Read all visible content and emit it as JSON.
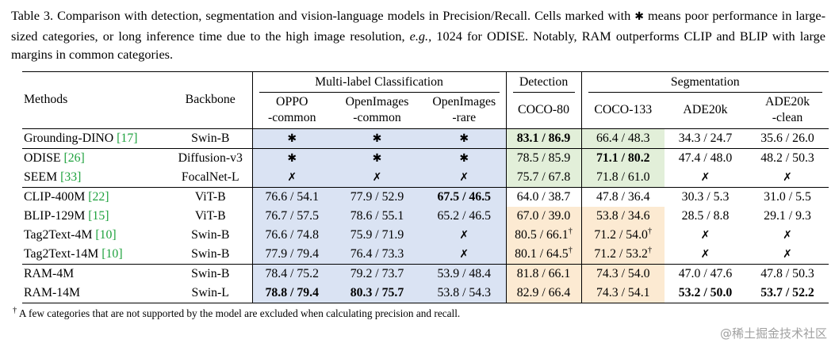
{
  "caption": {
    "segments": [
      {
        "text": "Table 3. Comparison with detection, segmentation and vision-language models in Precision/Recall. Cells marked with "
      },
      {
        "text": "✱",
        "style": "symbol"
      },
      {
        "text": " means poor performance in large-sized categories, or long inference time due to the high image resolution, "
      },
      {
        "text": "e.g.,",
        "style": "italic"
      },
      {
        "text": " 1024 for ODISE. Notably, RAM outperforms CLIP and BLIP with large margins in common categories."
      }
    ]
  },
  "colors": {
    "blue": "#dae3f3",
    "green": "#e2efd9",
    "orange": "#fcead2",
    "cite": "#1fa23e",
    "watermark": "#a0a0a0"
  },
  "symbols": {
    "star": "✱",
    "cross": "✗"
  },
  "table": {
    "corner": {
      "methods": "Methods",
      "backbone": "Backbone"
    },
    "groups": [
      {
        "label": "Multi-label Classification"
      },
      {
        "label": "Detection"
      },
      {
        "label": "Segmentation"
      }
    ],
    "columns": [
      {
        "line1": "OPPO",
        "line2": "-common"
      },
      {
        "line1": "OpenImages",
        "line2": "-common"
      },
      {
        "line1": "OpenImages",
        "line2": "-rare"
      },
      {
        "line1": "COCO-80",
        "line2": ""
      },
      {
        "line1": "COCO-133",
        "line2": ""
      },
      {
        "line1": "ADE20k",
        "line2": ""
      },
      {
        "line1": "ADE20k",
        "line2": "-clean"
      }
    ],
    "rows": [
      {
        "method": "Grounding-DINO",
        "cite": "[17]",
        "backbone": "Swin-B",
        "group_start": false,
        "cells": [
          {
            "sym": "star",
            "bg": "blue"
          },
          {
            "sym": "star",
            "bg": "blue"
          },
          {
            "sym": "star",
            "bg": "blue"
          },
          {
            "text": "83.1 / 86.9",
            "bg": "green",
            "bold": true
          },
          {
            "text": "66.4 / 48.3",
            "bg": "green"
          },
          {
            "text": "34.3 / 24.7",
            "bg": "none"
          },
          {
            "text": "35.6 / 26.0",
            "bg": "none"
          }
        ]
      },
      {
        "method": "ODISE",
        "cite": "[26]",
        "backbone": "Diffusion-v3",
        "group_start": true,
        "cells": [
          {
            "sym": "star",
            "bg": "blue"
          },
          {
            "sym": "star",
            "bg": "blue"
          },
          {
            "sym": "star",
            "bg": "blue"
          },
          {
            "text": "78.5 / 85.9",
            "bg": "green"
          },
          {
            "text": "71.1 / 80.2",
            "bg": "green",
            "bold": true
          },
          {
            "text": "47.4 / 48.0",
            "bg": "none"
          },
          {
            "text": "48.2 / 50.3",
            "bg": "none"
          }
        ]
      },
      {
        "method": "SEEM",
        "cite": "[33]",
        "backbone": "FocalNet-L",
        "group_start": false,
        "cells": [
          {
            "sym": "cross",
            "bg": "blue"
          },
          {
            "sym": "cross",
            "bg": "blue"
          },
          {
            "sym": "cross",
            "bg": "blue"
          },
          {
            "text": "75.7 / 67.8",
            "bg": "green"
          },
          {
            "text": "71.8 / 61.0",
            "bg": "green"
          },
          {
            "sym": "cross",
            "bg": "none"
          },
          {
            "sym": "cross",
            "bg": "none"
          }
        ]
      },
      {
        "method": "CLIP-400M",
        "cite": "[22]",
        "backbone": "ViT-B",
        "group_start": true,
        "cells": [
          {
            "text": "76.6 / 54.1",
            "bg": "blue"
          },
          {
            "text": "77.9 / 52.9",
            "bg": "blue"
          },
          {
            "text": "67.5 / 46.5",
            "bg": "blue",
            "bold": true
          },
          {
            "text": "64.0 / 38.7",
            "bg": "none"
          },
          {
            "text": "47.8 / 36.4",
            "bg": "none"
          },
          {
            "text": "30.3 / 5.3",
            "bg": "none"
          },
          {
            "text": "31.0 / 5.5",
            "bg": "none"
          }
        ]
      },
      {
        "method": "BLIP-129M",
        "cite": "[15]",
        "backbone": "ViT-B",
        "group_start": false,
        "cells": [
          {
            "text": "76.7 / 57.5",
            "bg": "blue"
          },
          {
            "text": "78.6 / 55.1",
            "bg": "blue"
          },
          {
            "text": "65.2 / 46.5",
            "bg": "blue"
          },
          {
            "text": "67.0 / 39.0",
            "bg": "orange"
          },
          {
            "text": "53.8 / 34.6",
            "bg": "orange"
          },
          {
            "text": "28.5 / 8.8",
            "bg": "none"
          },
          {
            "text": "29.1 / 9.3",
            "bg": "none"
          }
        ]
      },
      {
        "method": "Tag2Text-4M",
        "cite": "[10]",
        "backbone": "Swin-B",
        "group_start": false,
        "cells": [
          {
            "text": "76.6 / 74.8",
            "bg": "blue"
          },
          {
            "text": "75.9 / 71.9",
            "bg": "blue"
          },
          {
            "sym": "cross",
            "bg": "blue"
          },
          {
            "text": "80.5 / 66.1",
            "sup": "†",
            "bg": "orange"
          },
          {
            "text": "71.2 / 54.0",
            "sup": "†",
            "bg": "orange"
          },
          {
            "sym": "cross",
            "bg": "none"
          },
          {
            "sym": "cross",
            "bg": "none"
          }
        ]
      },
      {
        "method": "Tag2Text-14M",
        "cite": "[10]",
        "backbone": "Swin-B",
        "group_start": false,
        "cells": [
          {
            "text": "77.9 / 79.4",
            "bg": "blue"
          },
          {
            "text": "76.4 / 73.3",
            "bg": "blue"
          },
          {
            "sym": "cross",
            "bg": "blue"
          },
          {
            "text": "80.1 / 64.5",
            "sup": "†",
            "bg": "orange"
          },
          {
            "text": "71.2 / 53.2",
            "sup": "†",
            "bg": "orange"
          },
          {
            "sym": "cross",
            "bg": "none"
          },
          {
            "sym": "cross",
            "bg": "none"
          }
        ]
      },
      {
        "method": "RAM-4M",
        "cite": "",
        "backbone": "Swin-B",
        "group_start": true,
        "cells": [
          {
            "text": "78.4 / 75.2",
            "bg": "blue"
          },
          {
            "text": "79.2 / 73.7",
            "bg": "blue"
          },
          {
            "text": "53.9 / 48.4",
            "bg": "blue"
          },
          {
            "text": "81.8 / 66.1",
            "bg": "orange"
          },
          {
            "text": "74.3 / 54.0",
            "bg": "orange"
          },
          {
            "text": "47.0 / 47.6",
            "bg": "none"
          },
          {
            "text": "47.8 / 50.3",
            "bg": "none"
          }
        ]
      },
      {
        "method": "RAM-14M",
        "cite": "",
        "backbone": "Swin-L",
        "group_start": false,
        "cells": [
          {
            "text": "78.8 / 79.4",
            "bg": "blue",
            "bold": true
          },
          {
            "text": "80.3 / 75.7",
            "bg": "blue",
            "bold": true
          },
          {
            "text": "53.8 / 54.3",
            "bg": "blue"
          },
          {
            "text": "82.9 / 66.4",
            "bg": "orange"
          },
          {
            "text": "74.3 / 54.1",
            "bg": "orange"
          },
          {
            "text": "53.2 / 50.0",
            "bg": "none",
            "bold": true
          },
          {
            "text": "53.7 / 52.2",
            "bg": "none",
            "bold": true
          }
        ]
      }
    ]
  },
  "footnote": {
    "symbol": "†",
    "text": "A few categories that are not supported by the model are excluded when calculating precision and recall."
  },
  "watermark": {
    "text": "@稀土掘金技术社区"
  }
}
